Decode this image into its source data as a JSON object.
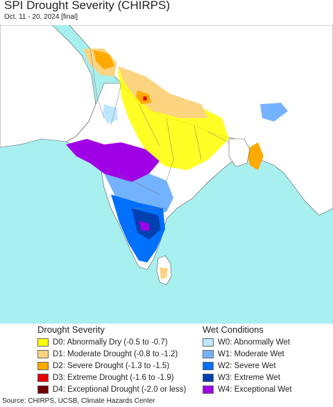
{
  "header": {
    "title": "SPI Drought Severity (CHIRPS)",
    "subtitle": "Oct. 11 - 20, 2024 [final]"
  },
  "map": {
    "ocean_color": "#a8f0f0",
    "land_color": "#ffffff",
    "border_color": "#555555"
  },
  "legend": {
    "drought": {
      "heading": "Drought Severity",
      "items": [
        {
          "label": "D0: Abnormally Dry (-0.5 to -0.7)",
          "color": "#ffff00"
        },
        {
          "label": "D1: Moderate Drought (-0.8 to -1.2)",
          "color": "#fcd37f"
        },
        {
          "label": "D2: Severe Drought (-1.3 to -1.5)",
          "color": "#ffaa00"
        },
        {
          "label": "D3: Extreme Drought (-1.6 to -1.9)",
          "color": "#e60000"
        },
        {
          "label": "D4: Exceptional Drought (-2.0 or less)",
          "color": "#730000"
        }
      ]
    },
    "wet": {
      "heading": "Wet Conditions",
      "items": [
        {
          "label": "W0: Abnormally Wet",
          "color": "#bee8ff"
        },
        {
          "label": "W1: Moderate Wet",
          "color": "#73b2ff"
        },
        {
          "label": "W2: Severe Wet",
          "color": "#0070ff"
        },
        {
          "label": "W3: Extreme Wet",
          "color": "#0040b0"
        },
        {
          "label": "W4: Exceptional Wet",
          "color": "#a000e6"
        }
      ]
    }
  },
  "source": "Source: CHIRPS, UCSB, Climate Hazards Center"
}
